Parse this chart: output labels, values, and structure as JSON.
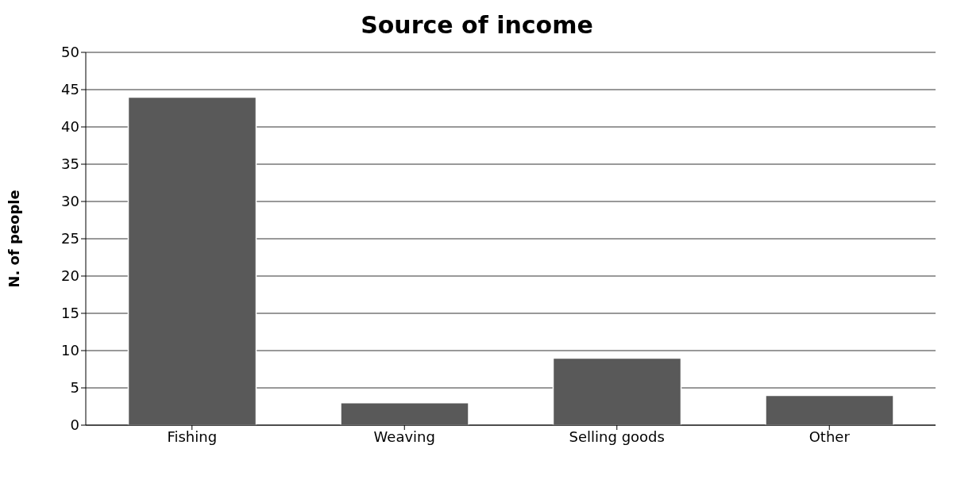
{
  "chart_data": {
    "type": "bar",
    "title": "Source of income",
    "ylabel": "N. of people",
    "categories": [
      "Fishing",
      "Weaving",
      "Selling goods",
      "Other"
    ],
    "values": [
      44,
      3,
      9,
      4
    ],
    "color": "#595959",
    "ylim": [
      0,
      50
    ],
    "yticks": [
      0,
      5,
      10,
      15,
      20,
      25,
      30,
      35,
      40,
      45,
      50
    ],
    "grid": "y"
  }
}
